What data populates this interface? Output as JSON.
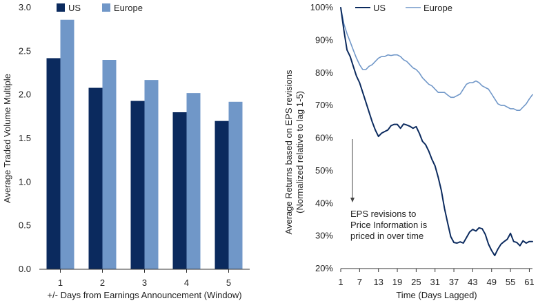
{
  "colors": {
    "us": "#0b2a5e",
    "europe": "#7097c8",
    "axis": "#333333"
  },
  "chart_data": [
    {
      "type": "bar",
      "categories": [
        "1",
        "2",
        "3",
        "4",
        "5"
      ],
      "series": [
        {
          "name": "US",
          "values": [
            2.42,
            2.08,
            1.93,
            1.8,
            1.7
          ]
        },
        {
          "name": "Europe",
          "values": [
            2.86,
            2.4,
            2.17,
            2.02,
            1.92
          ]
        }
      ],
      "ylim": [
        0,
        3
      ],
      "yticks": [
        "0.0",
        "0.5",
        "1.0",
        "1.5",
        "2.0",
        "2.5",
        "3.0"
      ],
      "ytick_values": [
        0,
        0.5,
        1.0,
        1.5,
        2.0,
        2.5,
        3.0
      ],
      "xlabel": "+/- Days from Earnings Announcement (Window)",
      "ylabel": "Average Traded Volume Multiple",
      "legend": "top-left",
      "grid": false
    },
    {
      "type": "line",
      "x": [
        1,
        2,
        3,
        4,
        5,
        6,
        7,
        8,
        9,
        10,
        11,
        12,
        13,
        14,
        15,
        16,
        17,
        18,
        19,
        20,
        21,
        22,
        23,
        24,
        25,
        26,
        27,
        28,
        29,
        30,
        31,
        32,
        33,
        34,
        35,
        36,
        37,
        38,
        39,
        40,
        41,
        42,
        43,
        44,
        45,
        46,
        47,
        48,
        49,
        50,
        51,
        52,
        53,
        54,
        55,
        56,
        57,
        58,
        59,
        60,
        61,
        62
      ],
      "series": [
        {
          "name": "US",
          "values": [
            100,
            93,
            87,
            85,
            82,
            79,
            77,
            74,
            71,
            68,
            65,
            62.5,
            60.5,
            61.5,
            62,
            62.5,
            63.8,
            64.2,
            64.2,
            63,
            64.3,
            64,
            63.6,
            63,
            63.5,
            61.5,
            59,
            58,
            56,
            53.5,
            51.5,
            48,
            44,
            38.5,
            34,
            29.8,
            28,
            27.8,
            28.2,
            27.8,
            29.5,
            31.2,
            32,
            31.5,
            32.5,
            32.2,
            30.5,
            27.5,
            25.5,
            24,
            26,
            27.5,
            28.3,
            29,
            30.8,
            28.3,
            28,
            27,
            28.5,
            27.8,
            28.3,
            28.3
          ]
        },
        {
          "name": "Europe",
          "values": [
            100,
            95,
            92,
            89.5,
            87,
            84.5,
            82.5,
            81,
            81,
            82,
            82.5,
            83.5,
            84.5,
            85,
            85,
            85.5,
            85.3,
            85.5,
            85.5,
            85,
            84,
            83.5,
            82.5,
            81.5,
            81,
            80,
            78.5,
            77.5,
            76.5,
            76,
            75,
            74,
            74,
            74,
            73.2,
            72.5,
            72.5,
            73,
            73.5,
            75,
            76.5,
            77,
            77,
            77.5,
            77,
            76,
            75.5,
            75,
            73.5,
            72,
            70.5,
            70,
            70,
            69.5,
            69,
            69,
            68.5,
            68.5,
            69.5,
            70.5,
            72,
            73.3
          ]
        }
      ],
      "ylim": [
        20,
        100
      ],
      "xlim": [
        1,
        62
      ],
      "yticks": [
        "20%",
        "30%",
        "40%",
        "50%",
        "60%",
        "70%",
        "80%",
        "90%",
        "100%"
      ],
      "ytick_values": [
        20,
        30,
        40,
        50,
        60,
        70,
        80,
        90,
        100
      ],
      "xticks": [
        "1",
        "7",
        "13",
        "19",
        "25",
        "31",
        "37",
        "43",
        "49",
        "55",
        "61"
      ],
      "xtick_values": [
        1,
        7,
        13,
        19,
        25,
        31,
        37,
        43,
        49,
        55,
        61
      ],
      "xlabel": "Time (Days Lagged)",
      "ylabel_line1": "Average Returns based on EPS revisions",
      "ylabel_line2": "(Normalized relative to lag 1-5)",
      "annotation": [
        "EPS revisions to",
        "Price Information is",
        "priced in over time"
      ],
      "legend": "top-left",
      "grid": false
    }
  ]
}
